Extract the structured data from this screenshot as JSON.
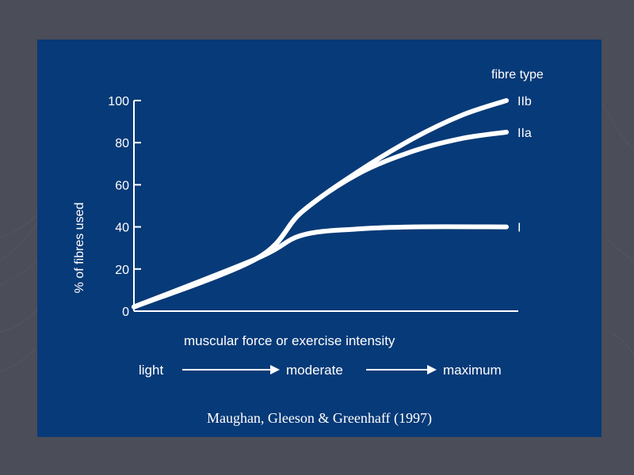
{
  "colors": {
    "background": "#4b4d58",
    "panel": "#073a78",
    "ink": "#ffffff"
  },
  "chart_data": {
    "type": "line",
    "ylabel": "% of fibres used",
    "xlabel": "muscular force or exercise intensity",
    "ylim": [
      0,
      100
    ],
    "yticks": [
      0,
      20,
      40,
      60,
      80,
      100
    ],
    "xlim": [
      0,
      100
    ],
    "legend_title": "fibre type",
    "series": [
      {
        "name": "IIb",
        "x": [
          0,
          33,
          45,
          60,
          75,
          88,
          100
        ],
        "y": [
          2,
          25,
          47,
          66,
          82,
          93,
          100
        ]
      },
      {
        "name": "IIa",
        "x": [
          0,
          33,
          45,
          60,
          75,
          88,
          100
        ],
        "y": [
          2,
          25,
          47,
          65,
          76,
          82,
          85
        ]
      },
      {
        "name": "I",
        "x": [
          0,
          33,
          45,
          60,
          75,
          100
        ],
        "y": [
          2,
          25,
          36,
          39,
          40,
          40
        ]
      }
    ],
    "intensity_scale": [
      "light",
      "moderate",
      "maximum"
    ]
  },
  "citation": "Maughan, Gleeson & Greenhaff  (1997)"
}
